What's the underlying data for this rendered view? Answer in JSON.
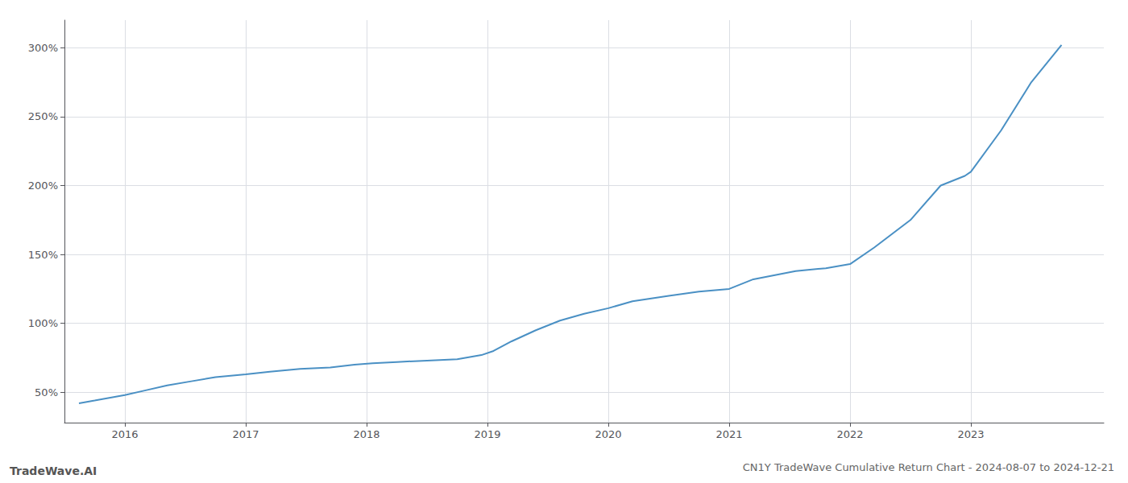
{
  "chart_data": {
    "type": "line",
    "title": "CN1Y TradeWave Cumulative Return Chart - 2024-08-07 to 2024-12-21",
    "annotations": [
      "TradeWave.AI"
    ],
    "x": [
      2015.62,
      2015.75,
      2016.0,
      2016.15,
      2016.35,
      2016.55,
      2016.75,
      2017.0,
      2017.2,
      2017.45,
      2017.7,
      2017.9,
      2018.05,
      2018.25,
      2018.5,
      2018.75,
      2018.95,
      2019.05,
      2019.2,
      2019.4,
      2019.6,
      2019.8,
      2020.0,
      2020.2,
      2020.5,
      2020.75,
      2021.0,
      2021.2,
      2021.55,
      2021.8,
      2022.0,
      2022.2,
      2022.5,
      2022.75,
      2022.95,
      2023.0,
      2023.25,
      2023.5,
      2023.75
    ],
    "values": [
      42,
      44,
      48,
      51,
      55,
      58,
      61,
      63,
      65,
      67,
      68,
      70,
      71,
      72,
      73,
      74,
      77,
      80,
      87,
      95,
      102,
      107,
      111,
      116,
      120,
      123,
      125,
      132,
      138,
      140,
      143,
      155,
      175,
      200,
      207,
      210,
      240,
      275,
      302
    ],
    "color": "#4a90c4",
    "xlim": [
      2015.5,
      2024.1
    ],
    "xticks": [
      2016,
      2017,
      2018,
      2019,
      2020,
      2021,
      2022,
      2023
    ],
    "ylim": [
      28,
      320
    ],
    "yticks": [
      {
        "value": 50,
        "label": "50%"
      },
      {
        "value": 100,
        "label": "100%"
      },
      {
        "value": 150,
        "label": "150%"
      },
      {
        "value": 200,
        "label": "200%"
      },
      {
        "value": 250,
        "label": "250%"
      },
      {
        "value": 300,
        "label": "300%"
      }
    ],
    "grid": true
  }
}
